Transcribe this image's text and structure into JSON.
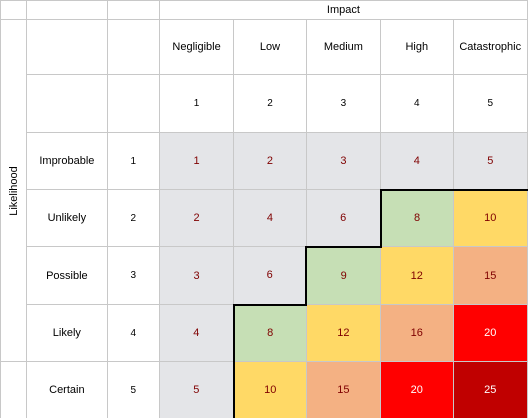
{
  "impact_title": "Impact",
  "likelihood_title": "Likelihood",
  "impact_levels": [
    {
      "label": "Negligible",
      "value": "1"
    },
    {
      "label": "Low",
      "value": "2"
    },
    {
      "label": "Medium",
      "value": "3"
    },
    {
      "label": "High",
      "value": "4"
    },
    {
      "label": "Catastrophic",
      "value": "5"
    }
  ],
  "likelihood_levels": [
    {
      "label": "Improbable",
      "value": "1"
    },
    {
      "label": "Unlikely",
      "value": "2"
    },
    {
      "label": "Possible",
      "value": "3"
    },
    {
      "label": "Likely",
      "value": "4"
    },
    {
      "label": "Certain",
      "value": "5"
    }
  ],
  "scores": [
    [
      "1",
      "2",
      "3",
      "4",
      "5"
    ],
    [
      "2",
      "4",
      "6",
      "8",
      "10"
    ],
    [
      "3",
      "6",
      "9",
      "12",
      "15"
    ],
    [
      "4",
      "8",
      "12",
      "16",
      "20"
    ],
    [
      "5",
      "10",
      "15",
      "20",
      "25"
    ]
  ],
  "cell_colors": [
    [
      "#e4e5e8",
      "#e4e5e8",
      "#e4e5e8",
      "#e4e5e8",
      "#e4e5e8"
    ],
    [
      "#e4e5e8",
      "#e4e5e8",
      "#e4e5e8",
      "#c6dfb5",
      "#ffd966"
    ],
    [
      "#e4e5e8",
      "#e4e5e8",
      "#c6dfb5",
      "#ffd966",
      "#f4b183"
    ],
    [
      "#e4e5e8",
      "#c6dfb5",
      "#ffd966",
      "#f4b183",
      "#ff0000"
    ],
    [
      "#e4e5e8",
      "#ffd966",
      "#f4b183",
      "#ff0000",
      "#c00000"
    ]
  ],
  "text_colors": [
    [
      "#7f0000",
      "#7f0000",
      "#7f0000",
      "#7f0000",
      "#7f0000"
    ],
    [
      "#7f0000",
      "#7f0000",
      "#7f0000",
      "#7f0000",
      "#7f0000"
    ],
    [
      "#7f0000",
      "#7f0000",
      "#7f0000",
      "#7f0000",
      "#7f0000"
    ],
    [
      "#7f0000",
      "#7f0000",
      "#7f0000",
      "#7f0000",
      "#ffffff"
    ],
    [
      "#7f0000",
      "#7f0000",
      "#7f0000",
      "#ffffff",
      "#ffffff"
    ]
  ]
}
